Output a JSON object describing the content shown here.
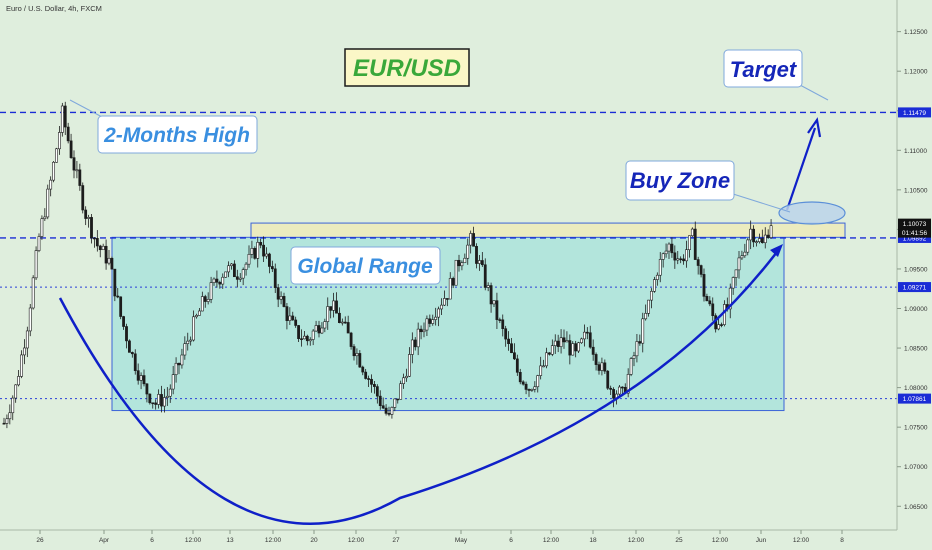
{
  "header": {
    "symbol_line": "Euro / U.S. Dollar, 4h, FXCM"
  },
  "annotations": {
    "pair_title": "EUR/USD",
    "target": "Target",
    "two_month_high": "2-Months High",
    "buy_zone": "Buy Zone",
    "global_range": "Global Range"
  },
  "colors": {
    "background": "#dfeedd",
    "dashed_line": "#1a2cd6",
    "dotted_line": "#2a3fd8",
    "range_fill": "#a8e2dc",
    "zone_fill": "#ebebbf",
    "arc": "#0f20c8",
    "callout_text": "#3a8fe0",
    "target_text": "#1526b8",
    "title_text": "#3aa83a",
    "candle_up": "#1c1c1c",
    "candle_down": "#1c1c1c"
  },
  "chart_data": {
    "type": "candlestick",
    "title": "Euro / U.S. Dollar, 4h, FXCM",
    "ylim": [
      1.062,
      1.129
    ],
    "y_ticks": [
      "1.12500",
      "1.12000",
      "1.11500",
      "1.11000",
      "1.10500",
      "1.10000",
      "1.09500",
      "1.09000",
      "1.08500",
      "1.08000",
      "1.07500",
      "1.07000",
      "1.06500"
    ],
    "x_ticks": [
      "26",
      "Apr",
      "6",
      "12:00",
      "13",
      "12:00",
      "20",
      "12:00",
      "27",
      "May",
      "6",
      "12:00",
      "18",
      "12:00",
      "25",
      "12:00",
      "Jun",
      "12:00",
      "8"
    ],
    "levels": [
      {
        "label": "1.11479",
        "value": 1.11479,
        "style": "dashed"
      },
      {
        "label": "1.09892",
        "value": 1.09892,
        "style": "dashed"
      },
      {
        "label": "1.09271",
        "value": 1.09271,
        "style": "dotted"
      },
      {
        "label": "1.07861",
        "value": 1.07861,
        "style": "dotted"
      }
    ],
    "price_label": {
      "price": "1.10073",
      "countdown": "01:41:56",
      "value": 1.10073
    },
    "range_box": {
      "top": 1.099,
      "bottom": 1.0771
    },
    "buy_zone": {
      "top": 1.1008,
      "bottom": 1.099
    },
    "close_path": [
      1.0755,
      1.08,
      1.088,
      1.099,
      1.106,
      1.1146,
      1.108,
      1.102,
      1.098,
      1.096,
      1.089,
      1.084,
      1.08,
      1.078,
      1.079,
      1.083,
      1.087,
      1.0905,
      1.093,
      1.095,
      1.0945,
      1.096,
      1.0985,
      1.094,
      1.09,
      1.087,
      1.086,
      1.088,
      1.0905,
      1.088,
      1.085,
      1.082,
      1.079,
      1.076,
      1.08,
      1.085,
      1.088,
      1.09,
      1.092,
      1.096,
      1.0985,
      1.0945,
      1.09,
      1.086,
      1.082,
      1.08,
      1.082,
      1.085,
      1.086,
      1.084,
      1.087,
      1.083,
      1.08,
      1.079,
      1.084,
      1.089,
      1.095,
      1.098,
      1.096,
      1.099,
      1.092,
      1.088,
      1.09,
      1.096,
      1.1,
      1.098,
      1.102
    ]
  }
}
